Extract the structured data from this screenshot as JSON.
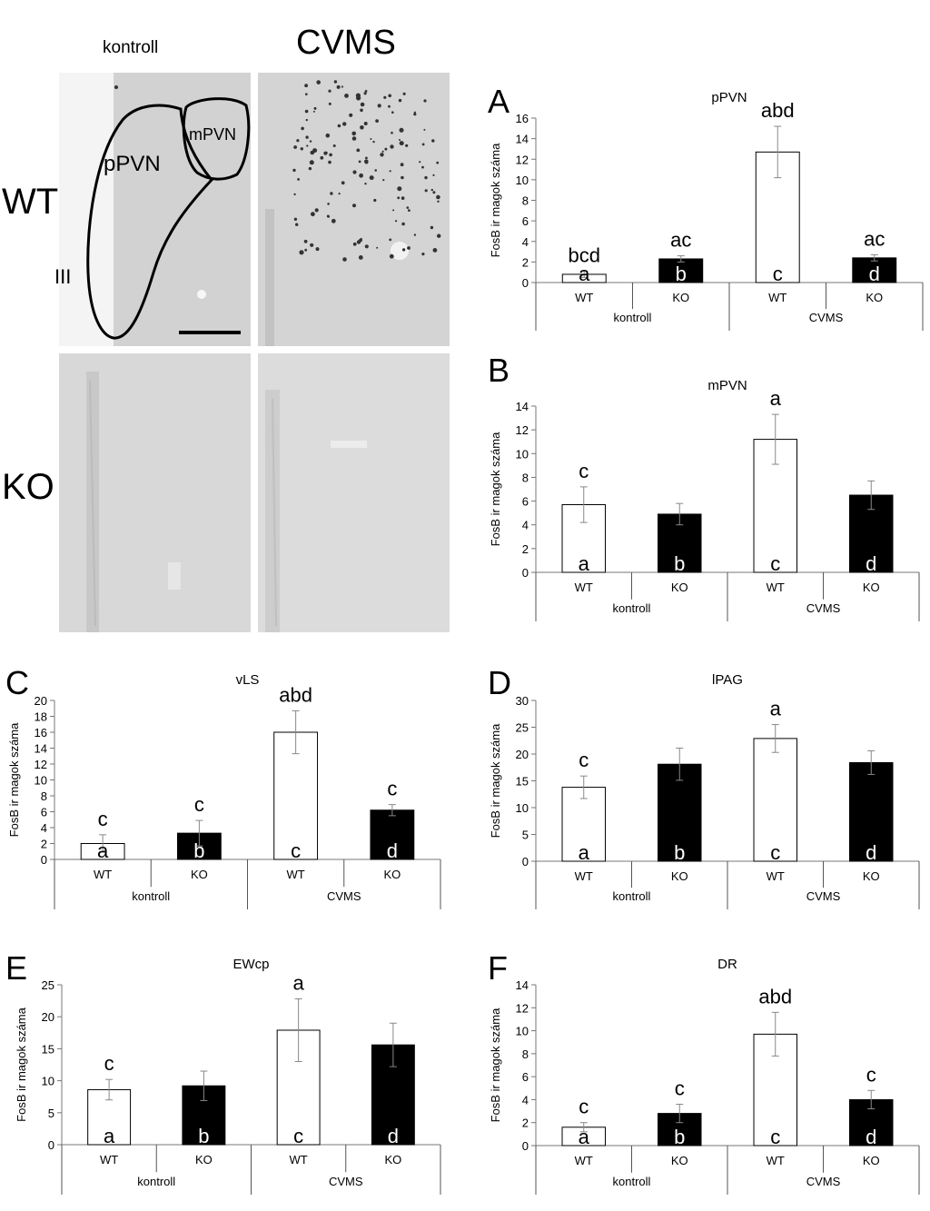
{
  "micrographs": {
    "col_control": "kontroll",
    "col_cvms": "CVMS",
    "row_wt": "WT",
    "row_ko": "KO",
    "region_ppvn": "pPVN",
    "region_mpvn": "mPVN",
    "region_iii": "III"
  },
  "chart_data": [
    {
      "panel": "A",
      "type": "bar",
      "title": "pPVN",
      "ylabel": "FosB ir magok száma",
      "ylim": [
        0,
        16
      ],
      "yticks": [
        0,
        2,
        4,
        6,
        8,
        10,
        12,
        14,
        16
      ],
      "categories": [
        "WT",
        "KO",
        "WT",
        "KO"
      ],
      "groups": [
        "kontroll",
        "CVMS"
      ],
      "values": [
        0.8,
        2.3,
        12.7,
        2.4
      ],
      "errors": [
        0.3,
        0.3,
        2.5,
        0.3
      ],
      "fills": [
        "#ffffff",
        "#000000",
        "#ffffff",
        "#000000"
      ],
      "top_labels": [
        "bcd",
        "ac",
        "abd",
        "ac"
      ],
      "bar_labels": [
        "a",
        "b",
        "c",
        "d"
      ]
    },
    {
      "panel": "B",
      "type": "bar",
      "title": "mPVN",
      "ylabel": "FosB ir magok száma",
      "ylim": [
        0,
        14
      ],
      "yticks": [
        0,
        2,
        4,
        6,
        8,
        10,
        12,
        14
      ],
      "categories": [
        "WT",
        "KO",
        "WT",
        "KO"
      ],
      "groups": [
        "kontroll",
        "CVMS"
      ],
      "values": [
        5.7,
        4.9,
        11.2,
        6.5
      ],
      "errors": [
        1.5,
        0.9,
        2.1,
        1.2
      ],
      "fills": [
        "#ffffff",
        "#000000",
        "#ffffff",
        "#000000"
      ],
      "top_labels": [
        "c",
        "",
        "a",
        ""
      ],
      "bar_labels": [
        "a",
        "b",
        "c",
        "d"
      ]
    },
    {
      "panel": "C",
      "type": "bar",
      "title": "vLS",
      "ylabel": "FosB ir magok száma",
      "ylim": [
        0,
        20
      ],
      "yticks": [
        0,
        2,
        4,
        6,
        8,
        10,
        12,
        14,
        16,
        18,
        20
      ],
      "categories": [
        "WT",
        "KO",
        "WT",
        "KO"
      ],
      "groups": [
        "kontroll",
        "CVMS"
      ],
      "values": [
        2.0,
        3.3,
        16.0,
        6.2
      ],
      "errors": [
        1.1,
        1.6,
        2.7,
        0.7
      ],
      "fills": [
        "#ffffff",
        "#000000",
        "#ffffff",
        "#000000"
      ],
      "top_labels": [
        "c",
        "c",
        "abd",
        "c"
      ],
      "bar_labels": [
        "a",
        "b",
        "c",
        "d"
      ]
    },
    {
      "panel": "D",
      "type": "bar",
      "title": "lPAG",
      "ylabel": "FosB ir magok száma",
      "ylim": [
        0,
        30
      ],
      "yticks": [
        0,
        5,
        10,
        15,
        20,
        25,
        30
      ],
      "categories": [
        "WT",
        "KO",
        "WT",
        "KO"
      ],
      "groups": [
        "kontroll",
        "CVMS"
      ],
      "values": [
        13.8,
        18.1,
        22.9,
        18.4
      ],
      "errors": [
        2.1,
        3.0,
        2.6,
        2.2
      ],
      "fills": [
        "#ffffff",
        "#000000",
        "#ffffff",
        "#000000"
      ],
      "top_labels": [
        "c",
        "",
        "a",
        ""
      ],
      "bar_labels": [
        "a",
        "b",
        "c",
        "d"
      ]
    },
    {
      "panel": "E",
      "type": "bar",
      "title": "EWcp",
      "ylabel": "FosB ir magok száma",
      "ylim": [
        0,
        25
      ],
      "yticks": [
        0,
        5,
        10,
        15,
        20,
        25
      ],
      "categories": [
        "WT",
        "KO",
        "WT",
        "KO"
      ],
      "groups": [
        "kontroll",
        "CVMS"
      ],
      "values": [
        8.6,
        9.2,
        17.9,
        15.6
      ],
      "errors": [
        1.6,
        2.3,
        4.9,
        3.4
      ],
      "fills": [
        "#ffffff",
        "#000000",
        "#ffffff",
        "#000000"
      ],
      "top_labels": [
        "c",
        "",
        "a",
        ""
      ],
      "bar_labels": [
        "a",
        "b",
        "c",
        "d"
      ]
    },
    {
      "panel": "F",
      "type": "bar",
      "title": "DR",
      "ylabel": "FosB ir magok száma",
      "ylim": [
        0,
        14
      ],
      "yticks": [
        0,
        2,
        4,
        6,
        8,
        10,
        12,
        14
      ],
      "categories": [
        "WT",
        "KO",
        "WT",
        "KO"
      ],
      "groups": [
        "kontroll",
        "CVMS"
      ],
      "values": [
        1.6,
        2.8,
        9.7,
        4.0
      ],
      "errors": [
        0.4,
        0.8,
        1.9,
        0.8
      ],
      "fills": [
        "#ffffff",
        "#000000",
        "#ffffff",
        "#000000"
      ],
      "top_labels": [
        "c",
        "c",
        "abd",
        "c"
      ],
      "bar_labels": [
        "a",
        "b",
        "c",
        "d"
      ]
    }
  ]
}
